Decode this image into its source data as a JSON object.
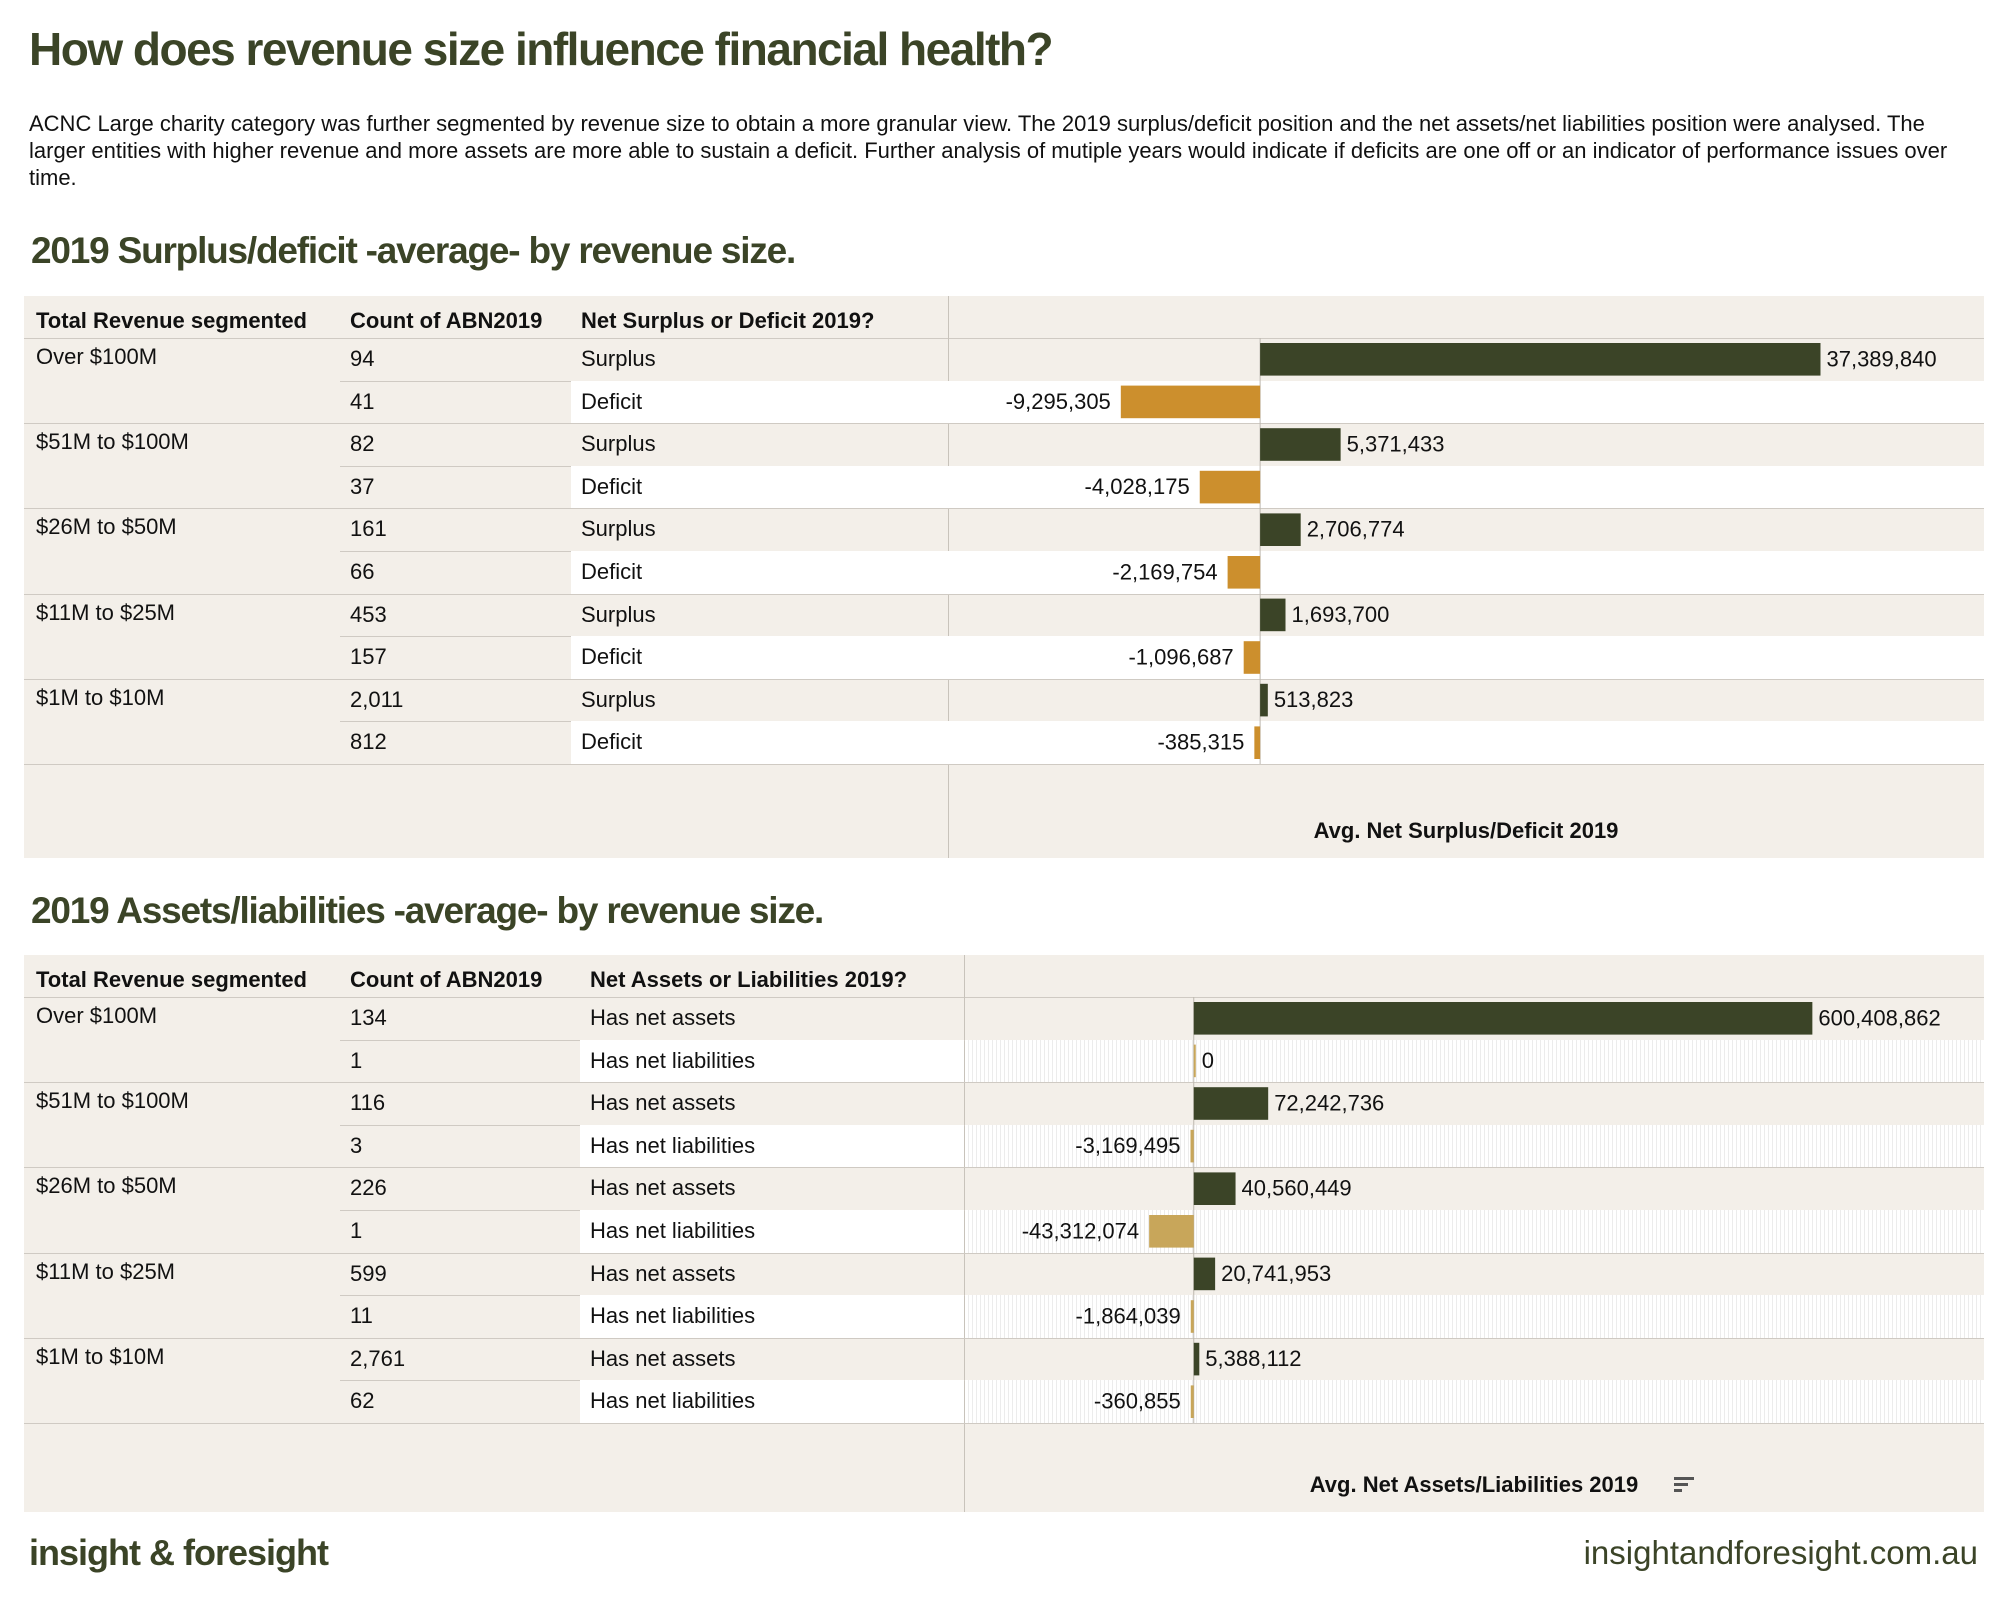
{
  "page_title": "How does revenue size influence financial health?",
  "intro": "ACNC Large charity category was further segmented by revenue size to obtain a more granular view. The 2019 surplus/deficit position and the net assets/net liabilities position were analysed. The larger entities with higher revenue and more assets are more able to sustain a deficit. Further analysis of mutiple years would indicate if deficits are one off or an indicator of performance issues over time.",
  "colors": {
    "title": "#3b4427",
    "positive": "#3b4427",
    "negative_surplus": "#cc8f2d",
    "negative_assets": "#c8a65a",
    "panel_bg": "#f3efe9"
  },
  "footer": {
    "brand": "insight & foresight",
    "url": "insightandforesight.com.au"
  },
  "chart_data": [
    {
      "type": "bar",
      "orientation": "horizontal",
      "title": "2019 Surplus/deficit -average- by revenue size.",
      "columns": [
        "Total Revenue segmented",
        "Count of ABN2019",
        "Net Surplus or Deficit 2019?"
      ],
      "xlabel": "Avg. Net Surplus/Deficit 2019",
      "rows": [
        {
          "segment": "Over $100M",
          "count": "94",
          "status": "Surplus",
          "value": 37389840,
          "label": "37,389,840"
        },
        {
          "segment": "",
          "count": "41",
          "status": "Deficit",
          "value": -9295305,
          "label": "-9,295,305"
        },
        {
          "segment": "$51M to $100M",
          "count": "82",
          "status": "Surplus",
          "value": 5371433,
          "label": "5,371,433"
        },
        {
          "segment": "",
          "count": "37",
          "status": "Deficit",
          "value": -4028175,
          "label": "-4,028,175"
        },
        {
          "segment": "$26M to $50M",
          "count": "161",
          "status": "Surplus",
          "value": 2706774,
          "label": "2,706,774"
        },
        {
          "segment": "",
          "count": "66",
          "status": "Deficit",
          "value": -2169754,
          "label": "-2,169,754"
        },
        {
          "segment": "$11M to $25M",
          "count": "453",
          "status": "Surplus",
          "value": 1693700,
          "label": "1,693,700"
        },
        {
          "segment": "",
          "count": "157",
          "status": "Deficit",
          "value": -1096687,
          "label": "-1,096,687"
        },
        {
          "segment": "$1M to $10M",
          "count": "2,011",
          "status": "Surplus",
          "value": 513823,
          "label": "513,823"
        },
        {
          "segment": "",
          "count": "812",
          "status": "Deficit",
          "value": -385315,
          "label": "-385,315"
        }
      ],
      "xlim": [
        -20826000,
        48300000
      ]
    },
    {
      "type": "bar",
      "orientation": "horizontal",
      "title": "2019 Assets/liabilities -average- by revenue size.",
      "columns": [
        "Total Revenue segmented",
        "Count of ABN2019",
        "Net Assets or Liabilities 2019?"
      ],
      "xlabel": "Avg. Net Assets/Liabilities 2019",
      "rows": [
        {
          "segment": "Over $100M",
          "count": "134",
          "status": "Has net assets",
          "value": 600408862,
          "label": "600,408,862"
        },
        {
          "segment": "",
          "count": "1",
          "status": "Has net liabilities",
          "value": 0,
          "label": "0"
        },
        {
          "segment": "$51M to $100M",
          "count": "116",
          "status": "Has net assets",
          "value": 72242736,
          "label": "72,242,736"
        },
        {
          "segment": "",
          "count": "3",
          "status": "Has net liabilities",
          "value": -3169495,
          "label": "-3,169,495"
        },
        {
          "segment": "$26M to $50M",
          "count": "226",
          "status": "Has net assets",
          "value": 40560449,
          "label": "40,560,449"
        },
        {
          "segment": "",
          "count": "1",
          "status": "Has net liabilities",
          "value": -43312074,
          "label": "-43,312,074"
        },
        {
          "segment": "$11M to $25M",
          "count": "599",
          "status": "Has net assets",
          "value": 20741953,
          "label": "20,741,953"
        },
        {
          "segment": "",
          "count": "11",
          "status": "Has net liabilities",
          "value": -1864039,
          "label": "-1,864,039"
        },
        {
          "segment": "$1M to $10M",
          "count": "2,761",
          "status": "Has net assets",
          "value": 5388112,
          "label": "5,388,112"
        },
        {
          "segment": "",
          "count": "62",
          "status": "Has net liabilities",
          "value": -360855,
          "label": "-360,855"
        }
      ],
      "xlim": [
        -223000000,
        767000000
      ]
    }
  ]
}
